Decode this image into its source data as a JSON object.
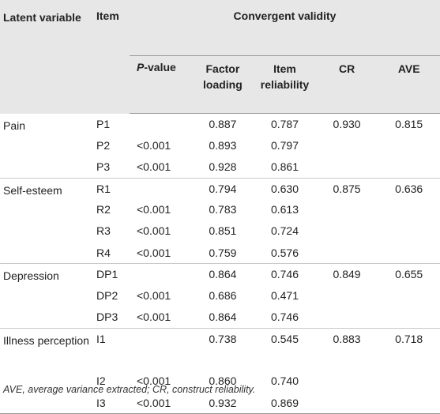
{
  "header": {
    "latent_variable": "Latent variable",
    "item": "Item",
    "convergent_validity": "Convergent validity",
    "p_value_italic": "P",
    "p_value_rest": "-value",
    "factor_loading": "Factor loading",
    "item_reliability": "Item reliability",
    "cr": "CR",
    "ave": "AVE"
  },
  "rows": [
    {
      "latent": "Pain",
      "item": "P1",
      "p": "",
      "fl": "0.887",
      "ir": "0.787",
      "cr": "0.930",
      "ave": "0.815"
    },
    {
      "latent": "",
      "item": "P2",
      "p": "<0.001",
      "fl": "0.893",
      "ir": "0.797",
      "cr": "",
      "ave": ""
    },
    {
      "latent": "",
      "item": "P3",
      "p": "<0.001",
      "fl": "0.928",
      "ir": "0.861",
      "cr": "",
      "ave": ""
    },
    {
      "latent": "Self-esteem",
      "item": "R1",
      "p": "",
      "fl": "0.794",
      "ir": "0.630",
      "cr": "0.875",
      "ave": "0.636"
    },
    {
      "latent": "",
      "item": "R2",
      "p": "<0.001",
      "fl": "0.783",
      "ir": "0.613",
      "cr": "",
      "ave": ""
    },
    {
      "latent": "",
      "item": "R3",
      "p": "<0.001",
      "fl": "0.851",
      "ir": "0.724",
      "cr": "",
      "ave": ""
    },
    {
      "latent": "",
      "item": "R4",
      "p": "<0.001",
      "fl": "0.759",
      "ir": "0.576",
      "cr": "",
      "ave": ""
    },
    {
      "latent": "Depression",
      "item": "DP1",
      "p": "",
      "fl": "0.864",
      "ir": "0.746",
      "cr": "0.849",
      "ave": "0.655"
    },
    {
      "latent": "",
      "item": "DP2",
      "p": "<0.001",
      "fl": "0.686",
      "ir": "0.471",
      "cr": "",
      "ave": ""
    },
    {
      "latent": "",
      "item": "DP3",
      "p": "<0.001",
      "fl": "0.864",
      "ir": "0.746",
      "cr": "",
      "ave": ""
    },
    {
      "latent": "Illness perception",
      "item": "I1",
      "p": "",
      "fl": "0.738",
      "ir": "0.545",
      "cr": "0.883",
      "ave": "0.718"
    },
    {
      "latent": "",
      "item": "I2",
      "p": "<0.001",
      "fl": "0.860",
      "ir": "0.740",
      "cr": "",
      "ave": ""
    },
    {
      "latent": "",
      "item": "I3",
      "p": "<0.001",
      "fl": "0.932",
      "ir": "0.869",
      "cr": "",
      "ave": ""
    }
  ],
  "footnote": "AVE, average variance extracted; CR, construct reliability."
}
